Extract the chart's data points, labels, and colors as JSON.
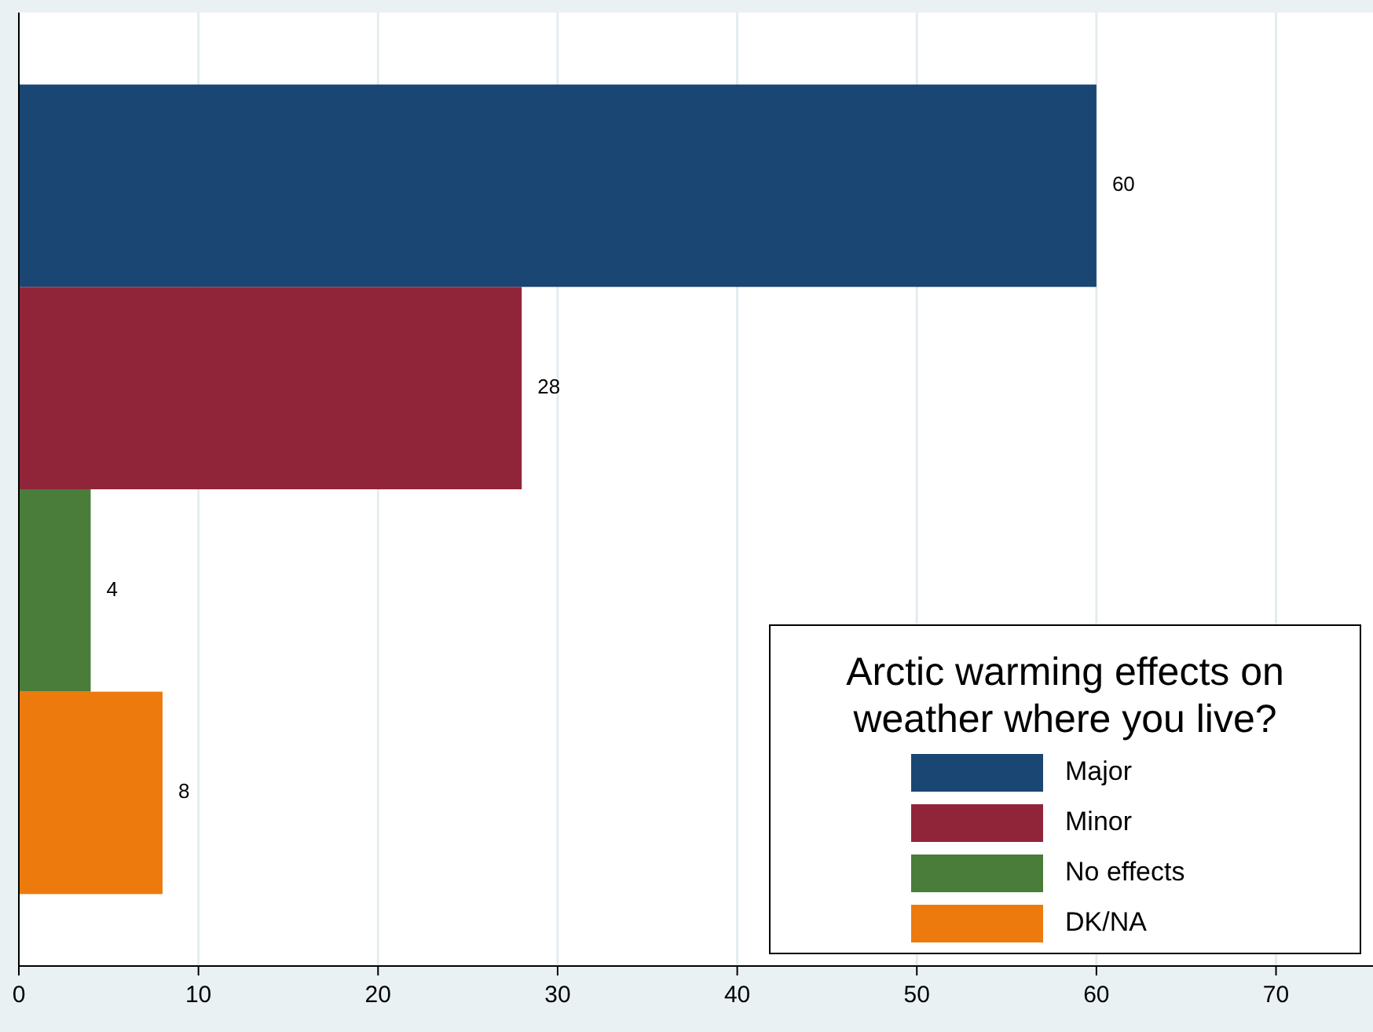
{
  "chart_data": {
    "type": "bar",
    "orientation": "horizontal",
    "legend_title": "Arctic warming effects on weather where you live?",
    "categories": [
      null
    ],
    "series": [
      {
        "name": "Major",
        "color": "#1a4673",
        "values": [
          60
        ]
      },
      {
        "name": "Minor",
        "color": "#90253a",
        "values": [
          28
        ]
      },
      {
        "name": "No effects",
        "color": "#4a7c3a",
        "values": [
          4
        ]
      },
      {
        "name": "DK/NA",
        "color": "#ec7a0c",
        "values": [
          8
        ]
      }
    ],
    "xlim": [
      0,
      75.4
    ],
    "xticks": [
      0,
      10,
      20,
      30,
      40,
      50,
      60,
      70
    ],
    "grid": "x",
    "legend": "bottom right",
    "data_labels": true
  }
}
